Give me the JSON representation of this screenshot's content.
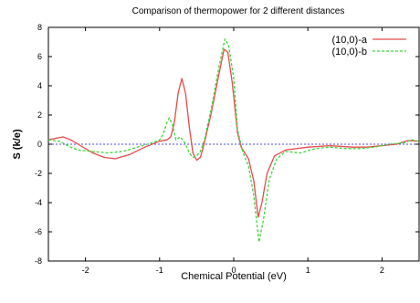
{
  "chart_data": {
    "type": "line",
    "title": "Comparison of thermopower for 2 different distances",
    "xlabel": "Chemical Potential (eV)",
    "ylabel": "S (k/e)",
    "xlim": [
      -2.5,
      2.5
    ],
    "ylim": [
      -8,
      8
    ],
    "xticks": [
      -2,
      -1,
      0,
      1,
      2
    ],
    "yticks": [
      -8,
      -6,
      -4,
      -2,
      0,
      2,
      4,
      6,
      8
    ],
    "legend_position": "top-right",
    "reference_line": {
      "y": 0,
      "color": "#4a4ae8"
    },
    "series": [
      {
        "name": "(10,0)-a",
        "color": "#e84a4a",
        "dash": "solid",
        "points": [
          [
            -2.5,
            0.3
          ],
          [
            -2.3,
            0.5
          ],
          [
            -2.2,
            0.3
          ],
          [
            -2.1,
            0.0
          ],
          [
            -1.9,
            -0.6
          ],
          [
            -1.75,
            -0.9
          ],
          [
            -1.6,
            -1.0
          ],
          [
            -1.4,
            -0.7
          ],
          [
            -1.2,
            -0.2
          ],
          [
            -1.0,
            0.2
          ],
          [
            -0.9,
            0.3
          ],
          [
            -0.85,
            0.5
          ],
          [
            -0.8,
            1.5
          ],
          [
            -0.75,
            3.5
          ],
          [
            -0.7,
            4.5
          ],
          [
            -0.65,
            3.5
          ],
          [
            -0.6,
            1.2
          ],
          [
            -0.55,
            -0.6
          ],
          [
            -0.5,
            -1.1
          ],
          [
            -0.45,
            -0.9
          ],
          [
            -0.4,
            0.0
          ],
          [
            -0.3,
            2.2
          ],
          [
            -0.2,
            4.8
          ],
          [
            -0.13,
            6.5
          ],
          [
            -0.08,
            6.3
          ],
          [
            -0.02,
            4.2
          ],
          [
            0.05,
            0.8
          ],
          [
            0.1,
            -0.2
          ],
          [
            0.2,
            -1.0
          ],
          [
            0.27,
            -2.5
          ],
          [
            0.33,
            -5.0
          ],
          [
            0.38,
            -4.0
          ],
          [
            0.45,
            -2.0
          ],
          [
            0.55,
            -0.8
          ],
          [
            0.7,
            -0.4
          ],
          [
            1.0,
            -0.2
          ],
          [
            1.3,
            -0.1
          ],
          [
            1.6,
            -0.2
          ],
          [
            1.8,
            -0.2
          ],
          [
            2.0,
            -0.1
          ],
          [
            2.2,
            0.0
          ],
          [
            2.35,
            0.25
          ],
          [
            2.5,
            0.2
          ]
        ]
      },
      {
        "name": "(10,0)-b",
        "color": "#3ad63a",
        "dash": "dashed",
        "points": [
          [
            -2.5,
            0.3
          ],
          [
            -2.35,
            0.2
          ],
          [
            -2.2,
            -0.2
          ],
          [
            -2.1,
            -0.4
          ],
          [
            -1.9,
            -0.5
          ],
          [
            -1.7,
            -0.6
          ],
          [
            -1.5,
            -0.5
          ],
          [
            -1.3,
            -0.2
          ],
          [
            -1.1,
            0.1
          ],
          [
            -1.0,
            0.3
          ],
          [
            -0.95,
            0.7
          ],
          [
            -0.9,
            1.5
          ],
          [
            -0.87,
            1.8
          ],
          [
            -0.83,
            1.4
          ],
          [
            -0.78,
            0.3
          ],
          [
            -0.72,
            0.5
          ],
          [
            -0.66,
            0.1
          ],
          [
            -0.6,
            -0.6
          ],
          [
            -0.55,
            -0.9
          ],
          [
            -0.5,
            -0.8
          ],
          [
            -0.45,
            -0.5
          ],
          [
            -0.4,
            0.2
          ],
          [
            -0.3,
            2.5
          ],
          [
            -0.2,
            5.3
          ],
          [
            -0.12,
            7.2
          ],
          [
            -0.07,
            6.8
          ],
          [
            0.0,
            4.5
          ],
          [
            0.05,
            1.0
          ],
          [
            0.12,
            -0.5
          ],
          [
            0.2,
            -1.5
          ],
          [
            0.27,
            -3.5
          ],
          [
            0.34,
            -6.7
          ],
          [
            0.4,
            -5.2
          ],
          [
            0.48,
            -2.4
          ],
          [
            0.58,
            -1.0
          ],
          [
            0.7,
            -0.5
          ],
          [
            0.9,
            -0.6
          ],
          [
            1.1,
            -0.3
          ],
          [
            1.3,
            -0.2
          ],
          [
            1.5,
            -0.3
          ],
          [
            1.7,
            -0.3
          ],
          [
            1.9,
            -0.2
          ],
          [
            2.1,
            0.0
          ],
          [
            2.3,
            0.1
          ],
          [
            2.4,
            0.3
          ],
          [
            2.5,
            0.2
          ]
        ]
      }
    ]
  }
}
